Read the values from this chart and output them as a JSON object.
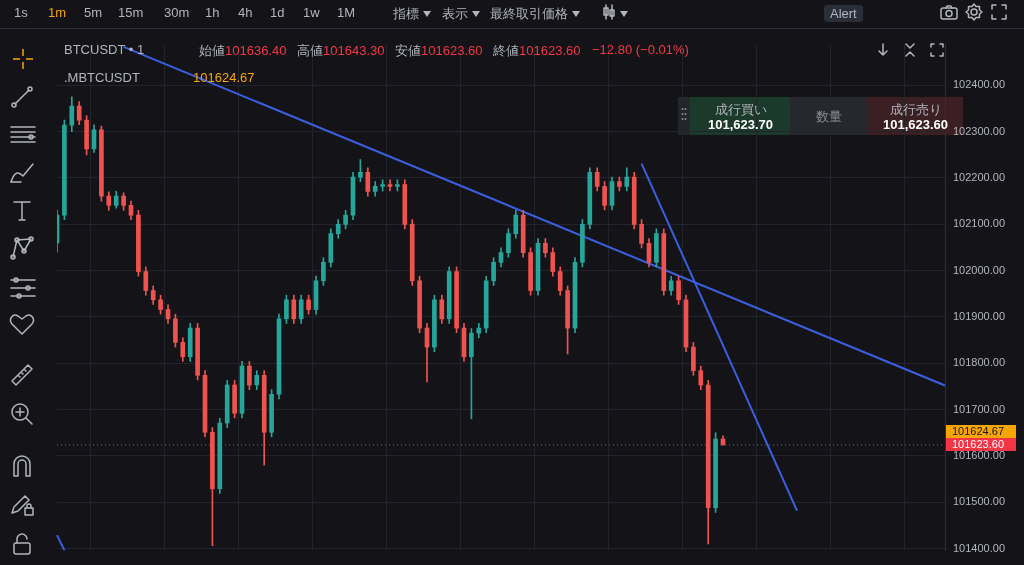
{
  "chart_data": {
    "type": "candlestick",
    "title": "BTCUSDT • 1",
    "subtitle": ".MBTCUSDT",
    "categories": [
      null,
      null,
      null,
      null,
      null,
      null,
      null,
      null,
      null,
      null,
      null,
      null,
      null,
      null,
      null,
      null,
      null,
      null,
      null,
      null,
      null,
      null,
      null,
      null,
      null,
      null,
      null,
      null,
      null,
      null,
      null,
      null,
      null,
      null,
      null,
      null,
      null,
      null,
      null,
      null,
      null,
      null,
      null,
      null,
      null,
      null,
      null,
      null,
      null,
      null,
      null,
      null,
      null,
      null,
      null,
      null,
      null,
      null,
      null,
      null,
      null,
      null,
      null,
      null,
      null,
      null,
      null,
      null,
      null,
      null,
      null,
      null,
      null,
      null,
      null,
      null,
      null,
      null,
      null,
      null,
      null,
      null,
      null,
      null,
      null,
      null,
      null,
      null,
      null,
      null,
      null,
      null,
      null,
      null,
      null,
      null,
      null,
      null,
      null,
      null,
      null,
      null,
      null,
      null,
      null,
      null,
      null,
      null,
      null,
      null,
      null,
      null,
      null,
      null,
      null,
      null,
      null,
      null,
      null,
      null,
      null
    ],
    "ohlc": [
      [
        102060,
        102130,
        102040,
        102120
      ],
      [
        102120,
        102325,
        102110,
        102314
      ],
      [
        102314,
        102375,
        102300,
        102355
      ],
      [
        102355,
        102365,
        102315,
        102325
      ],
      [
        102325,
        102335,
        102250,
        102263
      ],
      [
        102263,
        102315,
        102255,
        102304
      ],
      [
        102304,
        102312,
        102150,
        102161
      ],
      [
        102161,
        102170,
        102130,
        102141
      ],
      [
        102141,
        102172,
        102135,
        102161
      ],
      [
        102161,
        102168,
        102130,
        102141
      ],
      [
        102141,
        102150,
        102110,
        102120
      ],
      [
        102120,
        102130,
        101988,
        101998
      ],
      [
        101998,
        102008,
        101947,
        101957
      ],
      [
        101957,
        101967,
        101927,
        101937
      ],
      [
        101937,
        101947,
        101906,
        101916
      ],
      [
        101916,
        101926,
        101886,
        101896
      ],
      [
        101896,
        101906,
        101835,
        101845
      ],
      [
        101845,
        101855,
        101804,
        101814
      ],
      [
        101814,
        101886,
        101804,
        101876
      ],
      [
        101876,
        101886,
        101764,
        101774
      ],
      [
        101774,
        101784,
        101641,
        101651
      ],
      [
        101651,
        101661,
        101406,
        101529
      ],
      [
        101529,
        101681,
        101519,
        101671
      ],
      [
        101671,
        101763,
        101661,
        101753
      ],
      [
        101753,
        101763,
        101682,
        101692
      ],
      [
        101692,
        101804,
        101682,
        101794
      ],
      [
        101794,
        101804,
        101743,
        101753
      ],
      [
        101753,
        101784,
        101743,
        101774
      ],
      [
        101774,
        101784,
        101580,
        101651
      ],
      [
        101651,
        101743,
        101641,
        101733
      ],
      [
        101733,
        101906,
        101723,
        101896
      ],
      [
        101896,
        101947,
        101886,
        101937
      ],
      [
        101937,
        101947,
        101886,
        101896
      ],
      [
        101896,
        101947,
        101886,
        101937
      ],
      [
        101937,
        101947,
        101906,
        101916
      ],
      [
        101916,
        101988,
        101906,
        101978
      ],
      [
        101978,
        102028,
        101968,
        102018
      ],
      [
        102018,
        102090,
        102008,
        102080
      ],
      [
        102080,
        102110,
        102070,
        102100
      ],
      [
        102100,
        102130,
        102090,
        102120
      ],
      [
        102120,
        102212,
        102110,
        102202
      ],
      [
        102202,
        102240,
        102192,
        102212
      ],
      [
        102212,
        102222,
        102161,
        102171
      ],
      [
        102171,
        102192,
        102161,
        102182
      ],
      [
        102182,
        102196,
        102172,
        102186
      ],
      [
        102186,
        102196,
        102172,
        102182
      ],
      [
        102182,
        102196,
        102172,
        102186
      ],
      [
        102186,
        102196,
        102090,
        102100
      ],
      [
        102100,
        102110,
        101968,
        101978
      ],
      [
        101978,
        101988,
        101866,
        101876
      ],
      [
        101876,
        101886,
        101760,
        101835
      ],
      [
        101835,
        101947,
        101825,
        101937
      ],
      [
        101937,
        101947,
        101886,
        101896
      ],
      [
        101896,
        102008,
        101886,
        101998
      ],
      [
        101998,
        102008,
        101866,
        101876
      ],
      [
        101876,
        101886,
        101804,
        101814
      ],
      [
        101814,
        101875,
        101680,
        101865
      ],
      [
        101865,
        101886,
        101855,
        101876
      ],
      [
        101876,
        101988,
        101866,
        101978
      ],
      [
        101978,
        102028,
        101968,
        102018
      ],
      [
        102018,
        102049,
        102008,
        102039
      ],
      [
        102039,
        102090,
        102029,
        102080
      ],
      [
        102080,
        102130,
        102070,
        102120
      ],
      [
        102120,
        102130,
        102029,
        102039
      ],
      [
        102039,
        102049,
        101947,
        101957
      ],
      [
        101957,
        102069,
        101947,
        102059
      ],
      [
        102059,
        102069,
        102029,
        102039
      ],
      [
        102039,
        102049,
        101988,
        101998
      ],
      [
        101998,
        102008,
        101947,
        101957
      ],
      [
        101957,
        101967,
        101820,
        101876
      ],
      [
        101876,
        102028,
        101866,
        102018
      ],
      [
        102018,
        102110,
        102008,
        102100
      ],
      [
        102100,
        102222,
        102090,
        102212
      ],
      [
        102212,
        102222,
        102172,
        102182
      ],
      [
        102182,
        102192,
        102131,
        102141
      ],
      [
        102141,
        102202,
        102131,
        102192
      ],
      [
        102192,
        102202,
        102172,
        102182
      ],
      [
        102182,
        102222,
        102172,
        102202
      ],
      [
        102202,
        102212,
        102090,
        102100
      ],
      [
        102100,
        102110,
        102049,
        102059
      ],
      [
        102059,
        102069,
        102008,
        102018
      ],
      [
        102018,
        102090,
        102008,
        102080
      ],
      [
        102080,
        102090,
        101947,
        101957
      ],
      [
        101957,
        101988,
        101947,
        101978
      ],
      [
        101978,
        101988,
        101927,
        101937
      ],
      [
        101937,
        101947,
        101825,
        101835
      ],
      [
        101835,
        101845,
        101774,
        101784
      ],
      [
        101784,
        101794,
        101743,
        101753
      ],
      [
        101753,
        101763,
        101410,
        101488
      ],
      [
        101488,
        101650,
        101478,
        101636.4
      ],
      [
        101636.4,
        101643.3,
        101623.6,
        101623.6
      ],
      null,
      null,
      null,
      null,
      null,
      null,
      null,
      null,
      null,
      null,
      null,
      null,
      null,
      null,
      null,
      null,
      null,
      null,
      null,
      null,
      null,
      null,
      null,
      null,
      null,
      null,
      null,
      null,
      null,
      null
    ],
    "series": [
      {
        "type": "line",
        "color": "#3b5fe0",
        "values": [
          null,
          null,
          null,
          null,
          null,
          null,
          null,
          null,
          null,
          102483,
          null,
          null,
          null,
          null,
          null,
          null,
          null,
          null,
          null,
          null,
          null,
          null,
          null,
          null,
          null,
          null,
          null,
          null,
          null,
          null,
          null,
          null,
          null,
          null,
          null,
          null,
          null,
          null,
          null,
          null,
          null,
          null,
          null,
          null,
          null,
          null,
          null,
          null,
          null,
          null,
          null,
          null,
          null,
          null,
          null,
          null,
          null,
          null,
          null,
          null,
          null,
          null,
          null,
          null,
          null,
          null,
          null,
          null,
          null,
          null,
          null,
          null,
          null,
          null,
          null,
          null,
          null,
          null,
          null,
          null,
          null,
          null,
          null,
          null,
          null,
          null,
          null,
          null,
          null,
          null,
          null,
          null,
          null,
          null,
          null,
          null,
          null,
          null,
          null,
          null,
          null,
          null,
          null,
          null,
          null,
          null,
          null,
          null,
          null,
          null,
          null,
          null,
          null,
          null,
          null,
          null,
          null,
          null,
          null,
          null,
          101752
        ]
      },
      {
        "type": "line",
        "color": "#3b5fe0",
        "values": [
          null,
          null,
          null,
          null,
          null,
          null,
          null,
          null,
          null,
          null,
          null,
          null,
          null,
          null,
          null,
          null,
          null,
          null,
          null,
          null,
          null,
          null,
          null,
          null,
          null,
          null,
          null,
          null,
          null,
          null,
          null,
          null,
          null,
          null,
          null,
          null,
          null,
          null,
          null,
          null,
          null,
          null,
          null,
          null,
          null,
          null,
          null,
          null,
          null,
          null,
          null,
          null,
          null,
          null,
          null,
          null,
          null,
          null,
          null,
          null,
          null,
          null,
          null,
          null,
          null,
          null,
          null,
          null,
          null,
          null,
          null,
          null,
          null,
          null,
          null,
          null,
          null,
          null,
          null,
          102231,
          null,
          null,
          null,
          null,
          null,
          null,
          null,
          null,
          null,
          null,
          null,
          null,
          null,
          null,
          null,
          null,
          null,
          null,
          null,
          null,
          101482,
          null,
          null,
          null,
          null,
          null,
          null,
          null,
          null,
          null,
          null,
          null,
          null,
          null,
          null,
          null,
          null,
          null,
          null,
          null,
          null
        ]
      },
      {
        "type": "line",
        "color": "#3b5fe0",
        "values": [
          101429,
          101396,
          null,
          null,
          null,
          null,
          null,
          null,
          null,
          null,
          null,
          null,
          null,
          null,
          null,
          null,
          null,
          null,
          null,
          null,
          null,
          null,
          null,
          null,
          null,
          null,
          null,
          null,
          null,
          null,
          null,
          null,
          null,
          null,
          null,
          null,
          null,
          null,
          null,
          null,
          null,
          null,
          null,
          null,
          null,
          null,
          null,
          null,
          null,
          null,
          null,
          null,
          null,
          null,
          null,
          null,
          null,
          null,
          null,
          null,
          null,
          null,
          null,
          null,
          null,
          null,
          null,
          null,
          null,
          null,
          null,
          null,
          null,
          null,
          null,
          null,
          null,
          null,
          null,
          null,
          null,
          null,
          null,
          null,
          null,
          null,
          null,
          null,
          null,
          null,
          null,
          null,
          null,
          null,
          null,
          null,
          null,
          null,
          null,
          null,
          null,
          null,
          null,
          null,
          null,
          null,
          null,
          null,
          null,
          null,
          null,
          null,
          null,
          null,
          null,
          null,
          null,
          null,
          null,
          null,
          null
        ]
      }
    ],
    "ylim": [
      101396,
      102488
    ],
    "yticks": [
      {
        "value": 101400,
        "label": "101400.00"
      },
      {
        "value": 101500,
        "label": "101500.00"
      },
      {
        "value": 101600,
        "label": "101600.00"
      },
      {
        "value": 101700,
        "label": "101700.00"
      },
      {
        "value": 101800,
        "label": "101800.00"
      },
      {
        "value": 101900,
        "label": "101900.00"
      },
      {
        "value": 102000,
        "label": "102000.00"
      },
      {
        "value": 102100,
        "label": "102100.00"
      },
      {
        "value": 102200,
        "label": "102200.00"
      },
      {
        "value": 102300,
        "label": "102300.00"
      },
      {
        "value": 102400,
        "label": "102400.00"
      }
    ],
    "grid": true,
    "legend": false,
    "tick_labels": "y",
    "ref_lines": [
      {
        "axis": "y",
        "value": 101623.6,
        "label": "101623.60",
        "color": "#f23645",
        "line_style": "dotted"
      }
    ],
    "annotations": [
      "1s",
      "1m",
      "5m",
      "15m",
      "30m",
      "1h",
      "4h",
      "1d",
      "1w",
      "1M",
      "指標",
      "表示",
      "最終取引価格",
      "Alert",
      "始値101636.40",
      "高値101643.30",
      "安値101623.60",
      "終値101623.60",
      "−12.80 (−0.01%)",
      "101624.67",
      "成行買い",
      "101,623.70",
      "数量",
      "成行売り",
      "101,623.60"
    ]
  }
}
